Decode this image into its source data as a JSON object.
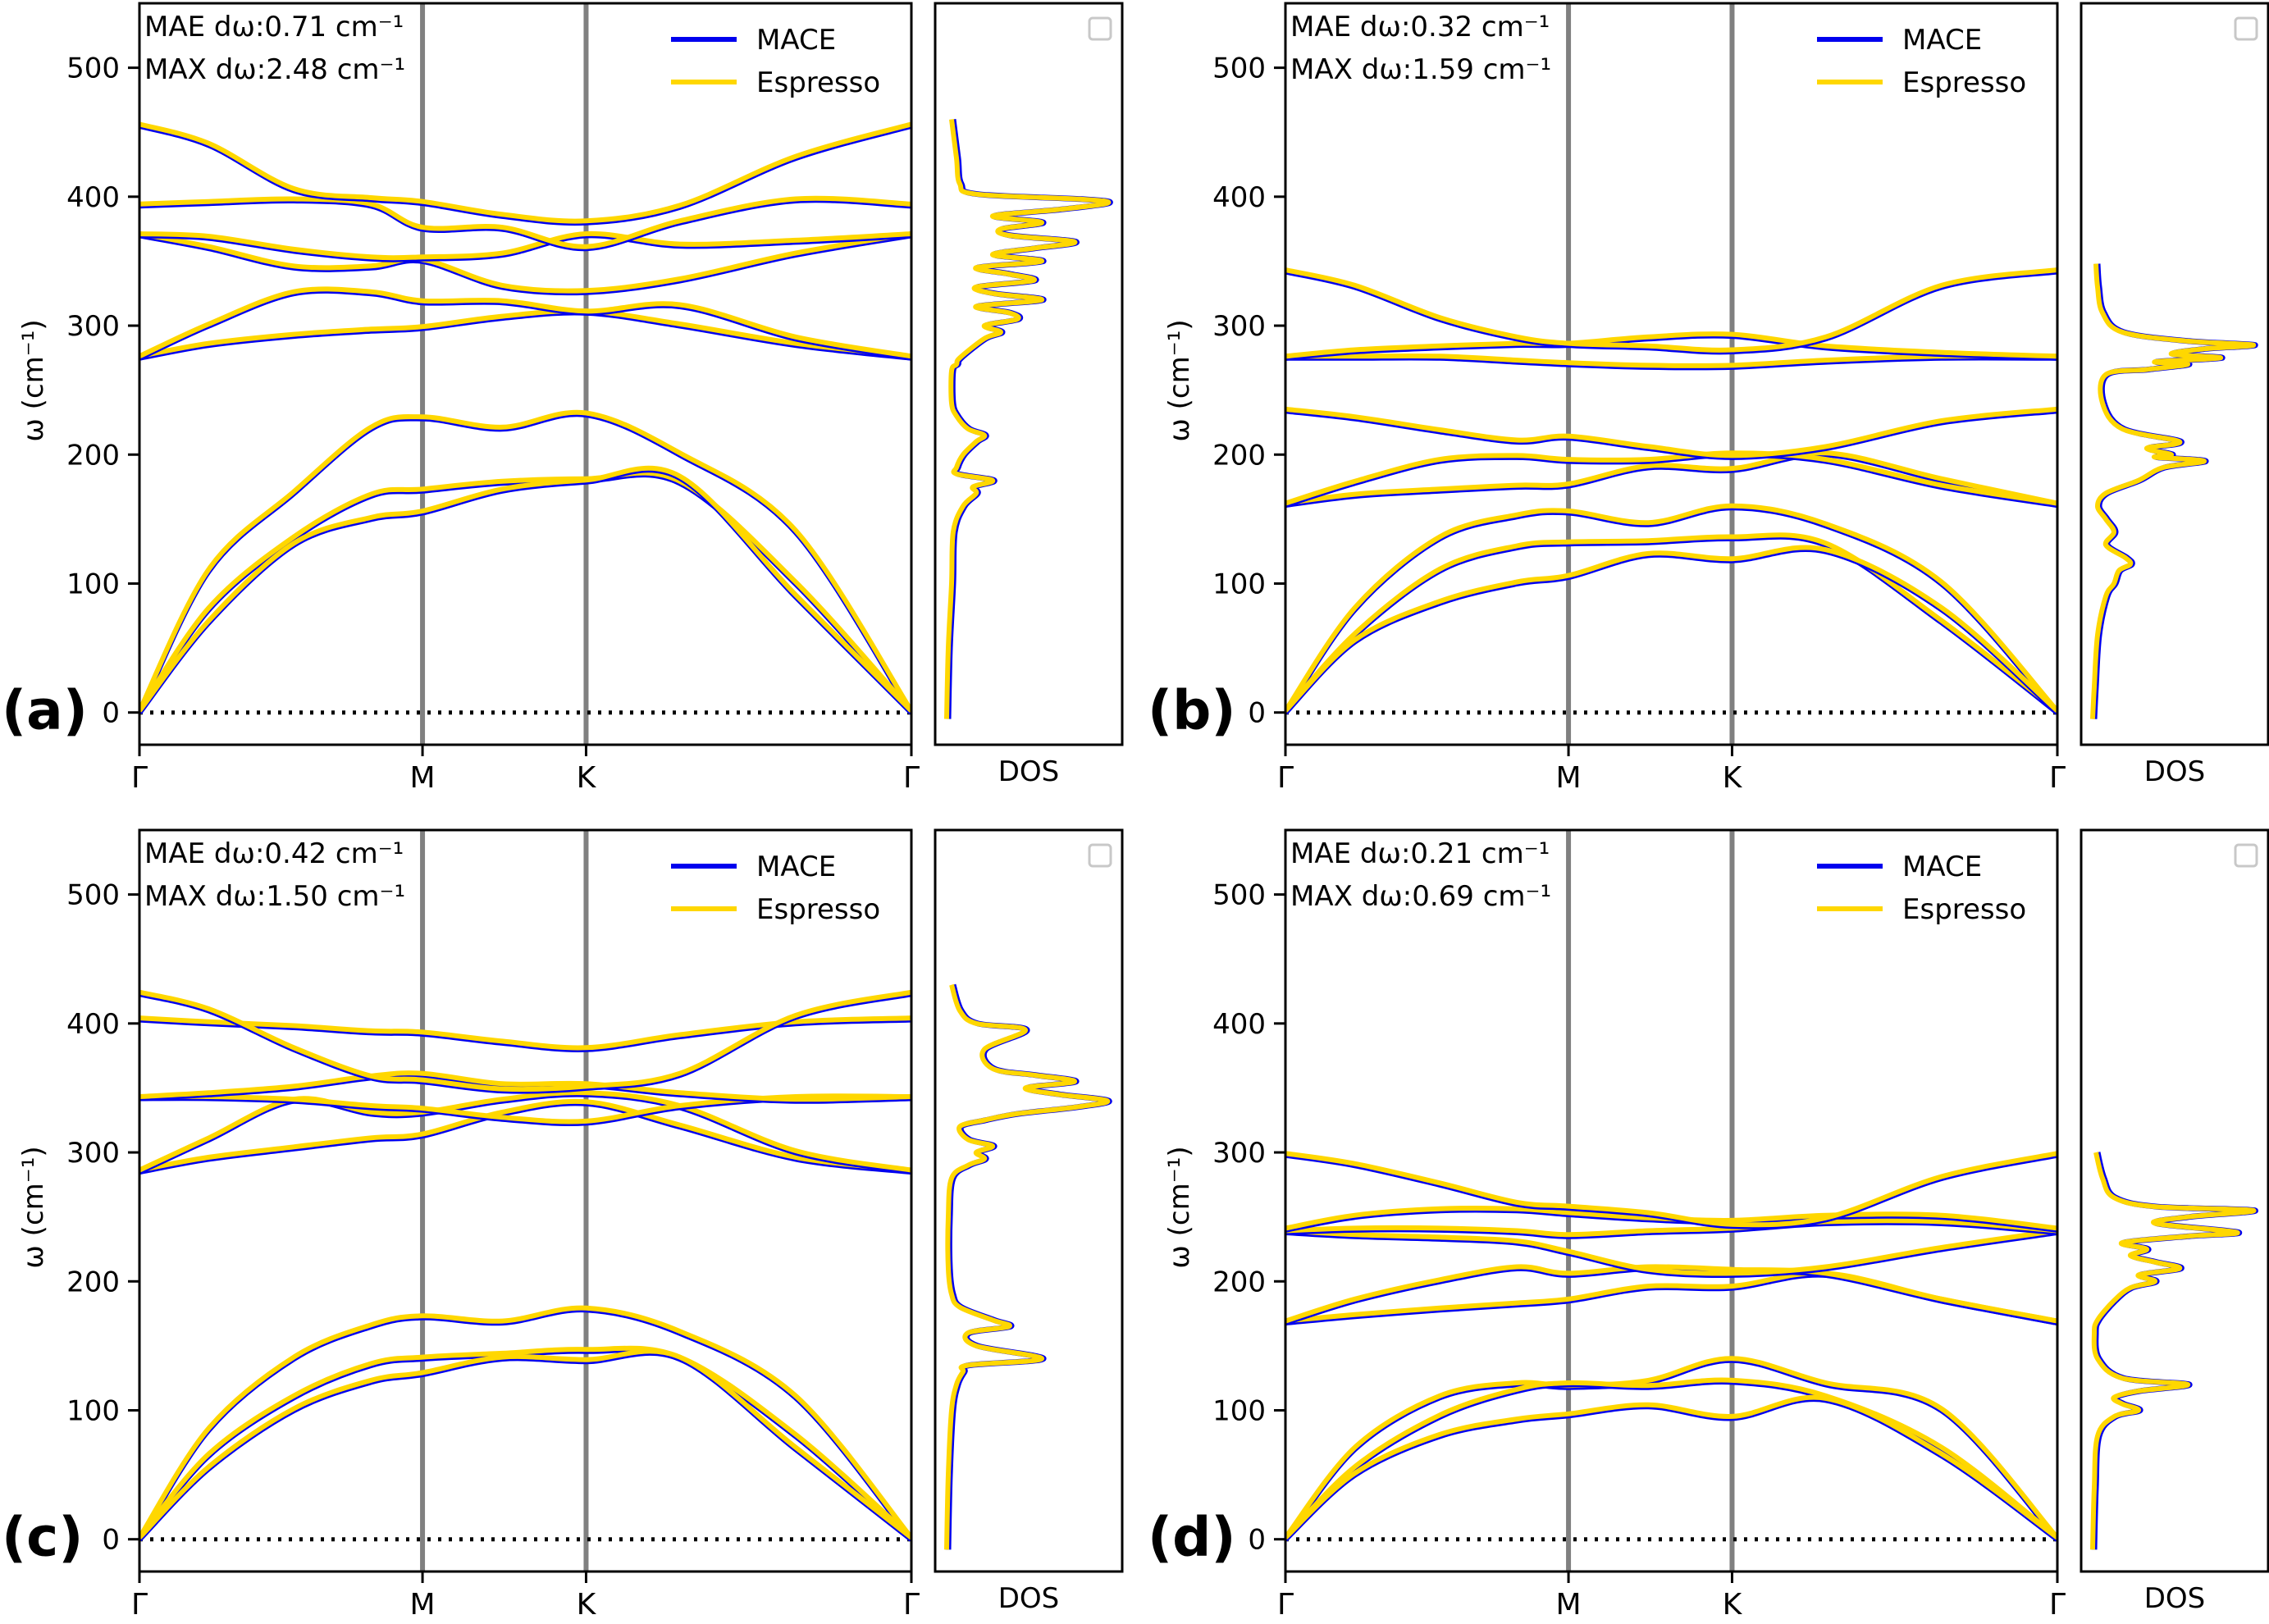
{
  "chart_data": [
    {
      "type": "line",
      "panel_label": "(a)",
      "ylabel": "ω (cm⁻¹)",
      "ylim": [
        -25,
        550
      ],
      "yticks": [
        0,
        100,
        200,
        300,
        400,
        500
      ],
      "x_ticks": [
        "Γ",
        "M",
        "K",
        "Γ"
      ],
      "dos_xlabel": "DOS",
      "stats": [
        "MAE dω:0.71 cm⁻¹",
        "MAX dω:2.48 cm⁻¹"
      ],
      "legend": [
        {
          "name": "MACE",
          "color": "#0000ee"
        },
        {
          "name": "Espresso",
          "color": "#ffd700"
        }
      ],
      "branches": [
        [
          0,
          110,
          170,
          220,
          228,
          220,
          231,
          200,
          140,
          0
        ],
        [
          0,
          80,
          135,
          168,
          172,
          178,
          180,
          178,
          100,
          0
        ],
        [
          0,
          70,
          130,
          150,
          155,
          172,
          179,
          182,
          90,
          0
        ],
        [
          275,
          285,
          292,
          296,
          298,
          306,
          310,
          300,
          285,
          275
        ],
        [
          275,
          300,
          325,
          325,
          318,
          318,
          310,
          315,
          290,
          275
        ],
        [
          370,
          360,
          345,
          345,
          350,
          330,
          326,
          335,
          355,
          370
        ],
        [
          370,
          368,
          358,
          352,
          352,
          355,
          370,
          362,
          365,
          370
        ],
        [
          393,
          395,
          397,
          393,
          375,
          375,
          360,
          380,
          397,
          393
        ],
        [
          455,
          440,
          405,
          398,
          395,
          385,
          380,
          392,
          430,
          455
        ]
      ],
      "dos": {
        "w": [
          -5,
          50,
          100,
          140,
          160,
          170,
          175,
          180,
          185,
          190,
          200,
          210,
          215,
          220,
          230,
          240,
          265,
          270,
          275,
          290,
          295,
          300,
          305,
          310,
          315,
          320,
          325,
          330,
          335,
          340,
          345,
          350,
          355,
          360,
          365,
          370,
          375,
          380,
          385,
          390,
          395,
          398,
          402,
          410,
          430,
          460
        ],
        "d": [
          0.02,
          0.03,
          0.05,
          0.06,
          0.12,
          0.2,
          0.18,
          0.3,
          0.08,
          0.08,
          0.12,
          0.2,
          0.25,
          0.15,
          0.08,
          0.05,
          0.05,
          0.08,
          0.1,
          0.25,
          0.35,
          0.25,
          0.45,
          0.4,
          0.2,
          0.6,
          0.3,
          0.2,
          0.55,
          0.4,
          0.2,
          0.6,
          0.3,
          0.55,
          0.8,
          0.4,
          0.35,
          0.6,
          0.3,
          0.7,
          1.0,
          0.85,
          0.2,
          0.1,
          0.08,
          0.05
        ]
      }
    },
    {
      "type": "line",
      "panel_label": "(b)",
      "ylabel": "ω (cm⁻¹)",
      "ylim": [
        -25,
        550
      ],
      "yticks": [
        0,
        100,
        200,
        300,
        400,
        500
      ],
      "x_ticks": [
        "Γ",
        "M",
        "K",
        "Γ"
      ],
      "dos_xlabel": "DOS",
      "stats": [
        "MAE dω:0.32 cm⁻¹",
        "MAX dω:1.59 cm⁻¹"
      ],
      "legend": [
        {
          "name": "MACE",
          "color": "#0000ee"
        },
        {
          "name": "Espresso",
          "color": "#ffd700"
        }
      ],
      "branches": [
        [
          0,
          80,
          135,
          152,
          155,
          146,
          159,
          145,
          100,
          0
        ],
        [
          0,
          60,
          110,
          128,
          131,
          132,
          135,
          130,
          70,
          0
        ],
        [
          0,
          55,
          85,
          100,
          105,
          122,
          118,
          125,
          80,
          0
        ],
        [
          161,
          168,
          172,
          175,
          176,
          190,
          188,
          200,
          180,
          161
        ],
        [
          161,
          178,
          195,
          198,
          195,
          195,
          200,
          195,
          175,
          161
        ],
        [
          234,
          228,
          218,
          210,
          213,
          205,
          198,
          205,
          225,
          234
        ],
        [
          275,
          275,
          275,
          272,
          270,
          268,
          268,
          272,
          275,
          275
        ],
        [
          275,
          280,
          283,
          285,
          285,
          290,
          292,
          283,
          278,
          275
        ],
        [
          342,
          330,
          305,
          290,
          285,
          283,
          280,
          290,
          330,
          342
        ]
      ],
      "dos": {
        "w": [
          -5,
          20,
          60,
          90,
          100,
          110,
          115,
          120,
          130,
          140,
          150,
          160,
          170,
          180,
          190,
          195,
          198,
          200,
          205,
          210,
          220,
          240,
          262,
          266,
          270,
          272,
          275,
          278,
          282,
          285,
          288,
          295,
          310,
          330,
          348
        ],
        "d": [
          0.02,
          0.03,
          0.05,
          0.1,
          0.15,
          0.18,
          0.25,
          0.22,
          0.1,
          0.15,
          0.1,
          0.05,
          0.1,
          0.3,
          0.45,
          0.7,
          0.4,
          0.5,
          0.35,
          0.55,
          0.2,
          0.08,
          0.1,
          0.35,
          0.6,
          0.4,
          0.8,
          0.5,
          0.7,
          1.0,
          0.6,
          0.2,
          0.08,
          0.05,
          0.04
        ]
      }
    },
    {
      "type": "line",
      "panel_label": "(c)",
      "ylabel": "ω (cm⁻¹)",
      "ylim": [
        -25,
        550
      ],
      "yticks": [
        0,
        100,
        200,
        300,
        400,
        500
      ],
      "x_ticks": [
        "Γ",
        "M",
        "K",
        "Γ"
      ],
      "dos_xlabel": "DOS",
      "stats": [
        "MAE dω:0.42 cm⁻¹",
        "MAX dω:1.50 cm⁻¹"
      ],
      "legend": [
        {
          "name": "MACE",
          "color": "#0000ee"
        },
        {
          "name": "Espresso",
          "color": "#ffd700"
        }
      ],
      "branches": [
        [
          0,
          85,
          140,
          165,
          172,
          168,
          178,
          160,
          110,
          0
        ],
        [
          0,
          65,
          110,
          135,
          140,
          143,
          146,
          140,
          80,
          0
        ],
        [
          0,
          55,
          100,
          122,
          128,
          140,
          138,
          140,
          70,
          0
        ],
        [
          285,
          295,
          303,
          310,
          313,
          330,
          338,
          320,
          295,
          285
        ],
        [
          285,
          310,
          340,
          330,
          330,
          340,
          345,
          335,
          300,
          285
        ],
        [
          342,
          342,
          340,
          335,
          333,
          326,
          323,
          335,
          342,
          342
        ],
        [
          342,
          345,
          350,
          358,
          360,
          352,
          352,
          345,
          340,
          342
        ],
        [
          403,
          400,
          397,
          393,
          392,
          385,
          380,
          390,
          400,
          403
        ],
        [
          423,
          410,
          380,
          358,
          355,
          348,
          350,
          360,
          405,
          423
        ]
      ],
      "dos": {
        "w": [
          -8,
          50,
          100,
          120,
          130,
          135,
          140,
          150,
          160,
          165,
          170,
          180,
          190,
          210,
          250,
          280,
          290,
          295,
          300,
          305,
          310,
          320,
          325,
          330,
          335,
          340,
          345,
          350,
          355,
          360,
          365,
          380,
          395,
          400,
          410,
          430
        ],
        "d": [
          0.02,
          0.03,
          0.05,
          0.08,
          0.12,
          0.15,
          0.6,
          0.2,
          0.15,
          0.4,
          0.3,
          0.1,
          0.05,
          0.03,
          0.03,
          0.05,
          0.15,
          0.25,
          0.2,
          0.3,
          0.15,
          0.1,
          0.25,
          0.45,
          0.8,
          1.0,
          0.7,
          0.5,
          0.8,
          0.55,
          0.3,
          0.25,
          0.5,
          0.2,
          0.1,
          0.05
        ]
      }
    },
    {
      "type": "line",
      "panel_label": "(d)",
      "ylabel": "ω (cm⁻¹)",
      "ylim": [
        -25,
        550
      ],
      "yticks": [
        0,
        100,
        200,
        300,
        400,
        500
      ],
      "x_ticks": [
        "Γ",
        "M",
        "K",
        "Γ"
      ],
      "dos_xlabel": "DOS",
      "stats": [
        "MAE dω:0.21 cm⁻¹",
        "MAX dω:0.69 cm⁻¹"
      ],
      "legend": [
        {
          "name": "MACE",
          "color": "#0000ee"
        },
        {
          "name": "Espresso",
          "color": "#ffd700"
        }
      ],
      "branches": [
        [
          0,
          70,
          110,
          120,
          118,
          122,
          139,
          120,
          100,
          0
        ],
        [
          0,
          55,
          95,
          115,
          120,
          118,
          122,
          110,
          70,
          0
        ],
        [
          0,
          50,
          80,
          92,
          96,
          103,
          94,
          108,
          65,
          0
        ],
        [
          168,
          173,
          178,
          182,
          185,
          195,
          195,
          205,
          185,
          168
        ],
        [
          168,
          185,
          200,
          210,
          205,
          210,
          208,
          205,
          185,
          168
        ],
        [
          238,
          235,
          233,
          230,
          222,
          208,
          205,
          210,
          225,
          238
        ],
        [
          238,
          240,
          240,
          238,
          235,
          238,
          240,
          245,
          245,
          238
        ],
        [
          240,
          250,
          255,
          255,
          252,
          248,
          246,
          250,
          250,
          240
        ],
        [
          298,
          290,
          275,
          260,
          257,
          252,
          243,
          248,
          280,
          298
        ]
      ],
      "dos": {
        "w": [
          -8,
          40,
          80,
          95,
          100,
          105,
          110,
          115,
          120,
          125,
          140,
          160,
          170,
          185,
          195,
          200,
          205,
          210,
          215,
          220,
          225,
          230,
          235,
          238,
          245,
          250,
          255,
          258,
          265,
          280,
          300
        ],
        "d": [
          0.02,
          0.03,
          0.05,
          0.15,
          0.3,
          0.2,
          0.15,
          0.3,
          0.6,
          0.2,
          0.05,
          0.03,
          0.05,
          0.15,
          0.25,
          0.4,
          0.3,
          0.55,
          0.4,
          0.25,
          0.35,
          0.2,
          0.6,
          0.9,
          0.4,
          0.6,
          1.0,
          0.4,
          0.15,
          0.08,
          0.04
        ]
      }
    }
  ]
}
